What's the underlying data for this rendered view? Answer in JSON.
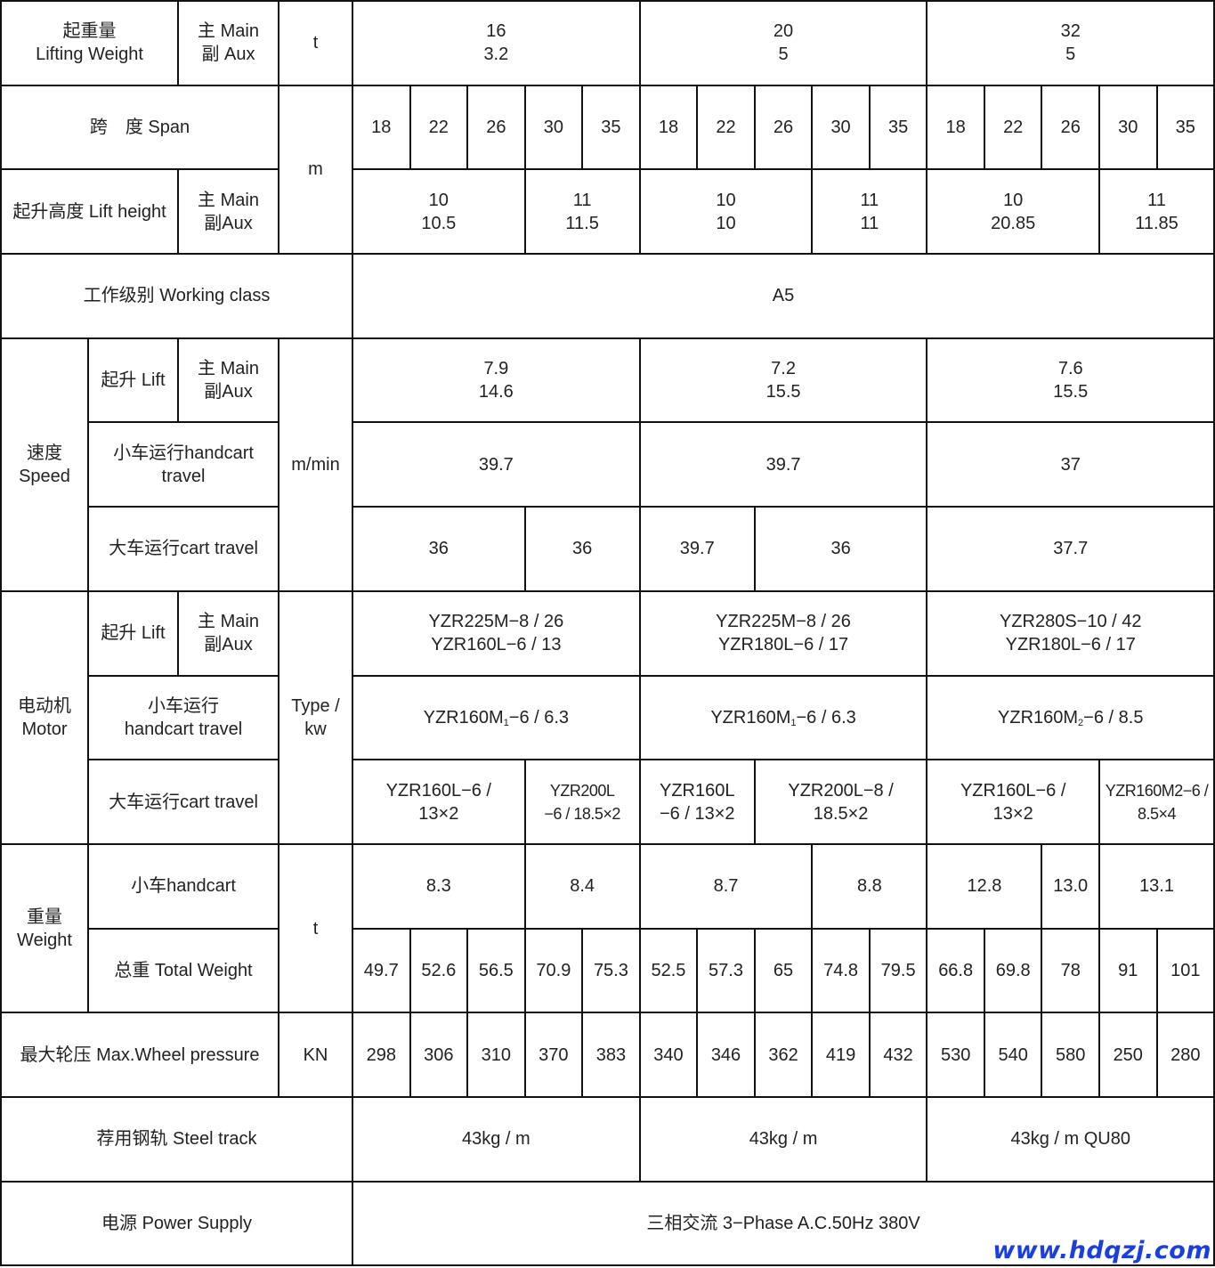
{
  "rows": [
    [
      {
        "t": "起重量\nLifting Weight",
        "cs": 2
      },
      {
        "t": "主 Main\n副 Aux"
      },
      {
        "t": "t"
      },
      {
        "t": "16\n3.2",
        "cs": 5
      },
      {
        "t": "20\n5",
        "cs": 5
      },
      {
        "t": "32\n5",
        "cs": 5
      }
    ],
    [
      {
        "t": "跨　度 Span",
        "cs": 3
      },
      {
        "t": "m",
        "rs": 2
      },
      {
        "t": "18"
      },
      {
        "t": "22"
      },
      {
        "t": "26"
      },
      {
        "t": "30"
      },
      {
        "t": "35"
      },
      {
        "t": "18"
      },
      {
        "t": "22"
      },
      {
        "t": "26"
      },
      {
        "t": "30"
      },
      {
        "t": "35"
      },
      {
        "t": "18"
      },
      {
        "t": "22"
      },
      {
        "t": "26"
      },
      {
        "t": "30"
      },
      {
        "t": "35"
      }
    ],
    [
      {
        "t": "起升高度 Lift height",
        "cs": 2
      },
      {
        "t": "主 Main\n副Aux"
      },
      {
        "t": "10\n10.5",
        "cs": 3
      },
      {
        "t": "11\n11.5",
        "cs": 2
      },
      {
        "t": "10\n10",
        "cs": 3
      },
      {
        "t": "11\n11",
        "cs": 2
      },
      {
        "t": "10\n20.85",
        "cs": 3
      },
      {
        "t": "11\n11.85",
        "cs": 2
      }
    ],
    [
      {
        "t": "工作级别 Working class",
        "cs": 4
      },
      {
        "t": "A5",
        "cs": 15
      }
    ],
    [
      {
        "t": "速度\nSpeed",
        "rs": 3
      },
      {
        "t": "起升 Lift"
      },
      {
        "t": "主 Main\n副Aux"
      },
      {
        "t": "m/min",
        "rs": 3
      },
      {
        "t": "7.9\n14.6",
        "cs": 5
      },
      {
        "t": "7.2\n15.5",
        "cs": 5
      },
      {
        "t": "7.6\n15.5",
        "cs": 5
      }
    ],
    [
      {
        "t": "小车运行handcart\ntravel",
        "cs": 2
      },
      {
        "t": "39.7",
        "cs": 5
      },
      {
        "t": "39.7",
        "cs": 5
      },
      {
        "t": "37",
        "cs": 5
      }
    ],
    [
      {
        "t": "大车运行cart travel",
        "cs": 2
      },
      {
        "t": "36",
        "cs": 3
      },
      {
        "t": "36",
        "cs": 2
      },
      {
        "t": "39.7",
        "cs": 2
      },
      {
        "t": "36",
        "cs": 3
      },
      {
        "t": "37.7",
        "cs": 5
      }
    ],
    [
      {
        "t": "电动机\nMotor",
        "rs": 3
      },
      {
        "t": "起升 Lift"
      },
      {
        "t": "主 Main\n副Aux"
      },
      {
        "t": "Type /\nkw",
        "rs": 3
      },
      {
        "t": "YZR225M−8 / 26\nYZR160L−6 / 13",
        "cs": 5
      },
      {
        "t": "YZR225M−8 / 26\nYZR180L−6 / 17",
        "cs": 5
      },
      {
        "t": "YZR280S−10 / 42\nYZR180L−6 / 17",
        "cs": 5
      }
    ],
    [
      {
        "t": "小车运行\nhandcart travel",
        "cs": 2
      },
      {
        "pre": "YZR160M",
        "sub": "1",
        "post": "−6 / 6.3",
        "cs": 5
      },
      {
        "pre": "YZR160M",
        "sub": "1",
        "post": "−6 / 6.3",
        "cs": 5
      },
      {
        "pre": "YZR160M",
        "sub": "2",
        "post": "−6 / 8.5",
        "cs": 5
      }
    ],
    [
      {
        "t": "大车运行cart travel",
        "cs": 2
      },
      {
        "t": "YZR160L−6 /\n13×2",
        "cs": 3
      },
      {
        "t": "YZR200L\n−6 / 18.5×2",
        "cs": 2,
        "tight": true
      },
      {
        "t": "YZR160L\n−6 / 13×2",
        "cs": 2
      },
      {
        "t": "YZR200L−8 /\n18.5×2",
        "cs": 3
      },
      {
        "t": "YZR160L−6 /\n13×2",
        "cs": 3
      },
      {
        "t": "YZR160M2−6 /\n8.5×4",
        "cs": 2,
        "tight": true
      }
    ],
    [
      {
        "t": "重量\nWeight",
        "rs": 2
      },
      {
        "t": "小车handcart",
        "cs": 2
      },
      {
        "t": "t",
        "rs": 2
      },
      {
        "t": "8.3",
        "cs": 3
      },
      {
        "t": "8.4",
        "cs": 2
      },
      {
        "t": "8.7",
        "cs": 3
      },
      {
        "t": "8.8",
        "cs": 2
      },
      {
        "t": "12.8",
        "cs": 2
      },
      {
        "t": "13.0"
      },
      {
        "t": "13.1",
        "cs": 2
      }
    ],
    [
      {
        "t": "总重 Total Weight",
        "cs": 2
      },
      {
        "t": "49.7"
      },
      {
        "t": "52.6"
      },
      {
        "t": "56.5"
      },
      {
        "t": "70.9"
      },
      {
        "t": "75.3"
      },
      {
        "t": "52.5"
      },
      {
        "t": "57.3"
      },
      {
        "t": "65"
      },
      {
        "t": "74.8"
      },
      {
        "t": "79.5"
      },
      {
        "t": "66.8"
      },
      {
        "t": "69.8"
      },
      {
        "t": "78"
      },
      {
        "t": "91"
      },
      {
        "t": "101"
      }
    ],
    [
      {
        "t": "最大轮压 Max.Wheel pressure",
        "cs": 3
      },
      {
        "t": "KN"
      },
      {
        "t": "298"
      },
      {
        "t": "306"
      },
      {
        "t": "310"
      },
      {
        "t": "370"
      },
      {
        "t": "383"
      },
      {
        "t": "340"
      },
      {
        "t": "346"
      },
      {
        "t": "362"
      },
      {
        "t": "419"
      },
      {
        "t": "432"
      },
      {
        "t": "530"
      },
      {
        "t": "540"
      },
      {
        "t": "580"
      },
      {
        "t": "250"
      },
      {
        "t": "280"
      }
    ],
    [
      {
        "t": "荐用钢轨 Steel track",
        "cs": 4
      },
      {
        "t": "43kg / m",
        "cs": 5
      },
      {
        "t": "43kg / m",
        "cs": 5
      },
      {
        "t": "43kg / m QU80",
        "cs": 5
      }
    ],
    [
      {
        "t": "电源 Power Supply",
        "cs": 4
      },
      {
        "t": "三相交流 3−Phase A.C.50Hz 380V",
        "cs": 15
      }
    ]
  ],
  "watermark": "www.hdqzj.com",
  "colors": {
    "watermark": "#1a3fe0",
    "border": "#111111"
  }
}
